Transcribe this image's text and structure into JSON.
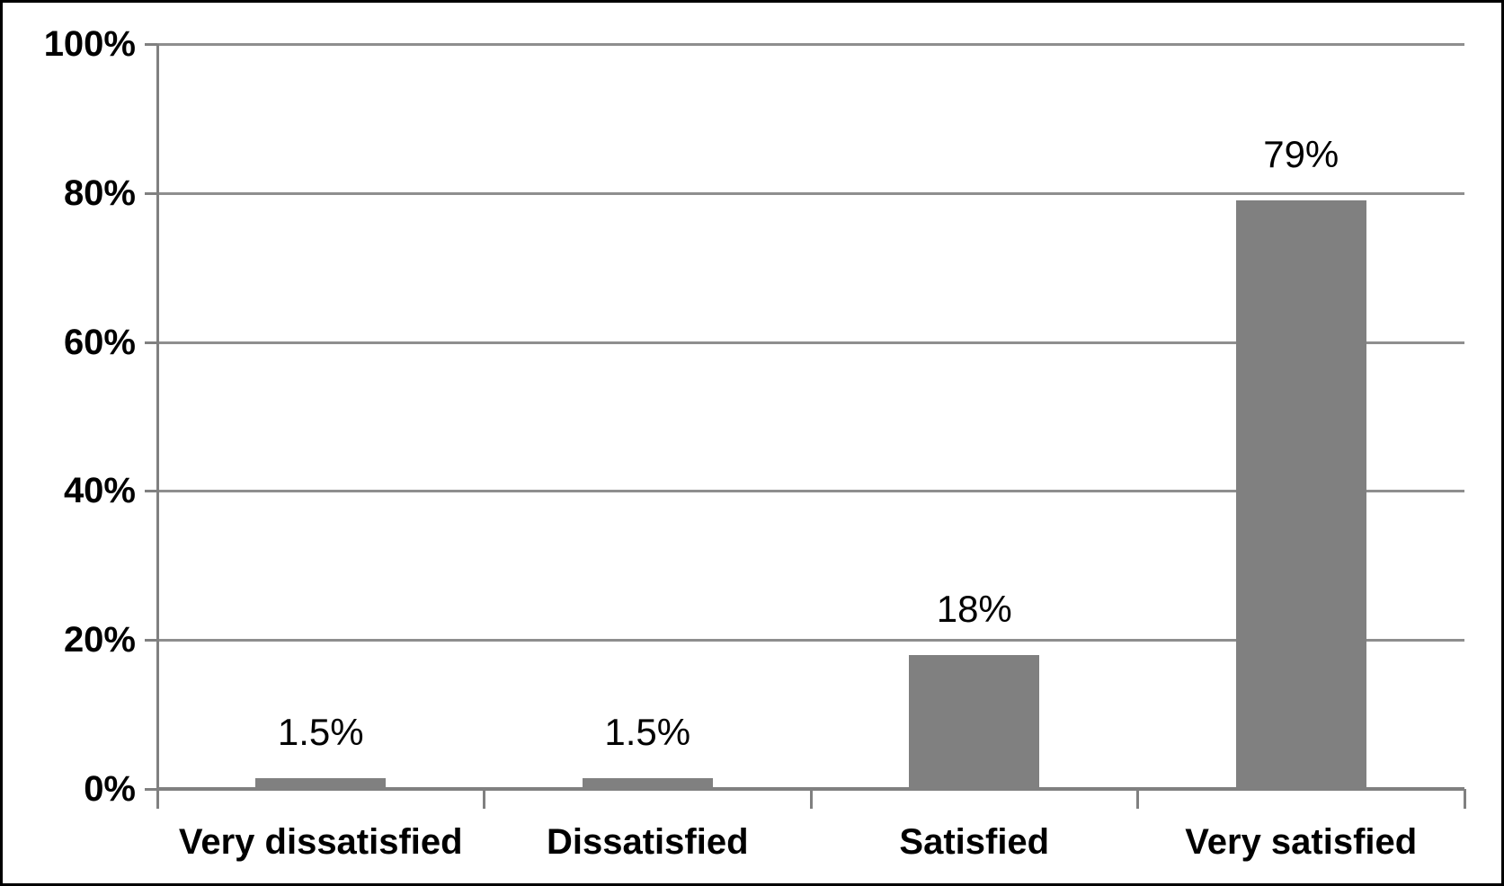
{
  "chart_data": {
    "type": "bar",
    "categories": [
      "Very dissatisfied",
      "Dissatisfied",
      "Satisfied",
      "Very satisfied"
    ],
    "values": [
      1.5,
      1.5,
      18,
      79
    ],
    "data_labels": [
      "1.5%",
      "1.5%",
      "18%",
      "79%"
    ],
    "ylim": [
      0,
      100
    ],
    "yticks": [
      0,
      20,
      40,
      60,
      80,
      100
    ],
    "ytick_labels": [
      "0%",
      "20%",
      "40%",
      "60%",
      "80%",
      "100%"
    ],
    "grid": true,
    "legend": "none",
    "xlabel": "",
    "ylabel": "",
    "colors": {
      "bar_fill": "#808080",
      "gridline": "#8e8e8e",
      "axis_line": "#808080",
      "text": "#000000",
      "frame_border": "#000000",
      "background": "#ffffff"
    }
  }
}
